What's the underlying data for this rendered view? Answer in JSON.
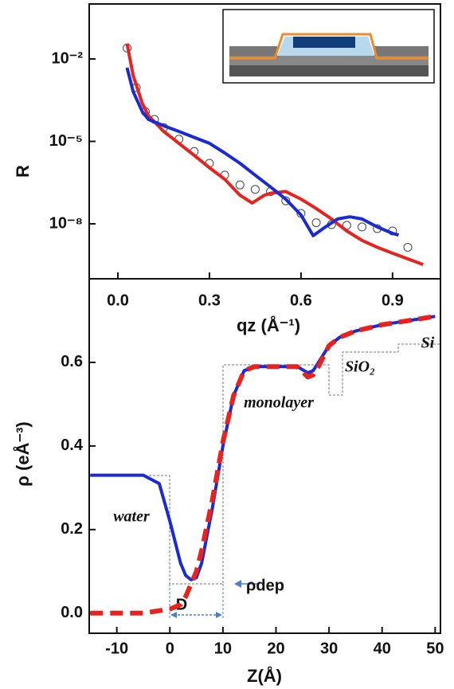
{
  "chart_data": [
    {
      "type": "line",
      "ylabel": "R",
      "xlabel": "qz (Å⁻¹)",
      "ylog": true,
      "xlim": [
        -0.094,
        1.057
      ],
      "xticks": [
        {
          "value": 0,
          "label": "0.0"
        },
        0.3,
        0.6,
        0.9
      ],
      "ylim": [
        1e-10,
        1
      ],
      "yticks": [
        {
          "value": 0.01,
          "label": "10⁻²"
        },
        {
          "value": 1e-05,
          "label": "10⁻⁵"
        },
        {
          "value": 1e-08,
          "label": "10⁻⁸"
        }
      ],
      "series": [
        {
          "color": "#444444",
          "marker": "circle",
          "x": [
            0.03,
            0.06,
            0.09,
            0.12,
            0.15,
            0.2,
            0.25,
            0.3,
            0.35,
            0.4,
            0.45,
            0.5,
            0.55,
            0.6,
            0.65,
            0.7,
            0.75,
            0.8,
            0.85,
            0.9,
            0.95
          ],
          "values": [
            0.025,
            0.00091,
            0.00012,
            6.3e-05,
            3.2e-05,
            1.2e-05,
            4.3e-06,
            1.6e-06,
            5.9e-07,
            2.6e-07,
            1.8e-07,
            1.5e-07,
            6.9e-08,
            2.4e-08,
            1.1e-08,
            9.4e-09,
            8.8e-09,
            7.7e-09,
            6.7e-09,
            5.5e-09,
            1.4e-09
          ]
        },
        {
          "color": "#e8231e",
          "x": [
            0.03,
            0.05,
            0.08,
            0.1,
            0.15,
            0.2,
            0.25,
            0.3,
            0.35,
            0.4,
            0.44,
            0.48,
            0.5,
            0.55,
            0.6,
            0.65,
            0.7,
            0.75,
            0.8,
            0.85,
            0.9,
            0.95,
            1.0
          ],
          "values": [
            0.036,
            0.0025,
            0.00024,
            8.7e-05,
            2.3e-05,
            8.5e-06,
            3.1e-06,
            1.1e-06,
            4.2e-07,
            1.1e-07,
            5.7e-08,
            1.1e-07,
            1.3e-07,
            1.5e-07,
            7.9e-08,
            3.6e-08,
            1.5e-08,
            5.5e-09,
            2.5e-09,
            1.4e-09,
            8.5e-10,
            5.3e-10,
            3.3e-10
          ]
        },
        {
          "color": "#1a2bd6",
          "x": [
            0.03,
            0.05,
            0.08,
            0.1,
            0.15,
            0.2,
            0.25,
            0.3,
            0.35,
            0.4,
            0.45,
            0.5,
            0.55,
            0.6,
            0.64,
            0.68,
            0.72,
            0.76,
            0.8,
            0.85,
            0.9,
            0.92
          ],
          "values": [
            0.0048,
            0.00065,
            0.00012,
            6.3e-05,
            3.7e-05,
            2.3e-05,
            1.4e-05,
            8.5e-06,
            3.8e-06,
            1.6e-06,
            5.9e-07,
            2.2e-07,
            7.9e-08,
            2.1e-08,
            3.7e-09,
            7.7e-09,
            1.5e-08,
            1.8e-08,
            1.5e-08,
            7.7e-09,
            4.5e-09,
            3.9e-09
          ]
        }
      ]
    },
    {
      "type": "line",
      "ylabel": "ρ (eÅ⁻³)",
      "xlabel": "Z(Å)",
      "xlim": [
        -15.2,
        51
      ],
      "xticks": [
        -10,
        0,
        10,
        20,
        30,
        40,
        50
      ],
      "ylim": [
        -0.048,
        0.8
      ],
      "yticks": [
        {
          "value": 0,
          "label": "0.0"
        },
        0.2,
        0.4,
        0.6
      ],
      "annotations": [
        "water",
        "monolayer",
        "SiO₂",
        "Si",
        "ρdep",
        "D"
      ],
      "series": [
        {
          "color": "#1a2bd6",
          "x": [
            -15,
            -5,
            -2,
            0,
            2,
            3,
            4,
            5,
            6,
            8,
            10,
            12,
            14,
            16,
            20,
            24,
            26,
            27,
            28,
            30,
            32,
            35,
            40,
            45,
            50
          ],
          "values": [
            0.33,
            0.33,
            0.31,
            0.22,
            0.12,
            0.09,
            0.08,
            0.085,
            0.12,
            0.25,
            0.4,
            0.52,
            0.58,
            0.59,
            0.59,
            0.59,
            0.575,
            0.58,
            0.6,
            0.64,
            0.66,
            0.675,
            0.69,
            0.7,
            0.71
          ]
        },
        {
          "color": "#e8231e",
          "dash": true,
          "x": [
            -15,
            -5,
            0,
            2,
            3,
            4,
            5,
            6,
            8,
            10,
            12,
            14,
            16,
            20,
            24,
            26,
            27,
            28,
            30,
            32,
            35,
            40,
            45,
            50
          ],
          "values": [
            0,
            0,
            0.01,
            0.02,
            0.04,
            0.07,
            0.1,
            0.15,
            0.27,
            0.41,
            0.52,
            0.58,
            0.59,
            0.59,
            0.59,
            0.565,
            0.57,
            0.59,
            0.64,
            0.66,
            0.675,
            0.69,
            0.7,
            0.71
          ]
        }
      ]
    }
  ]
}
